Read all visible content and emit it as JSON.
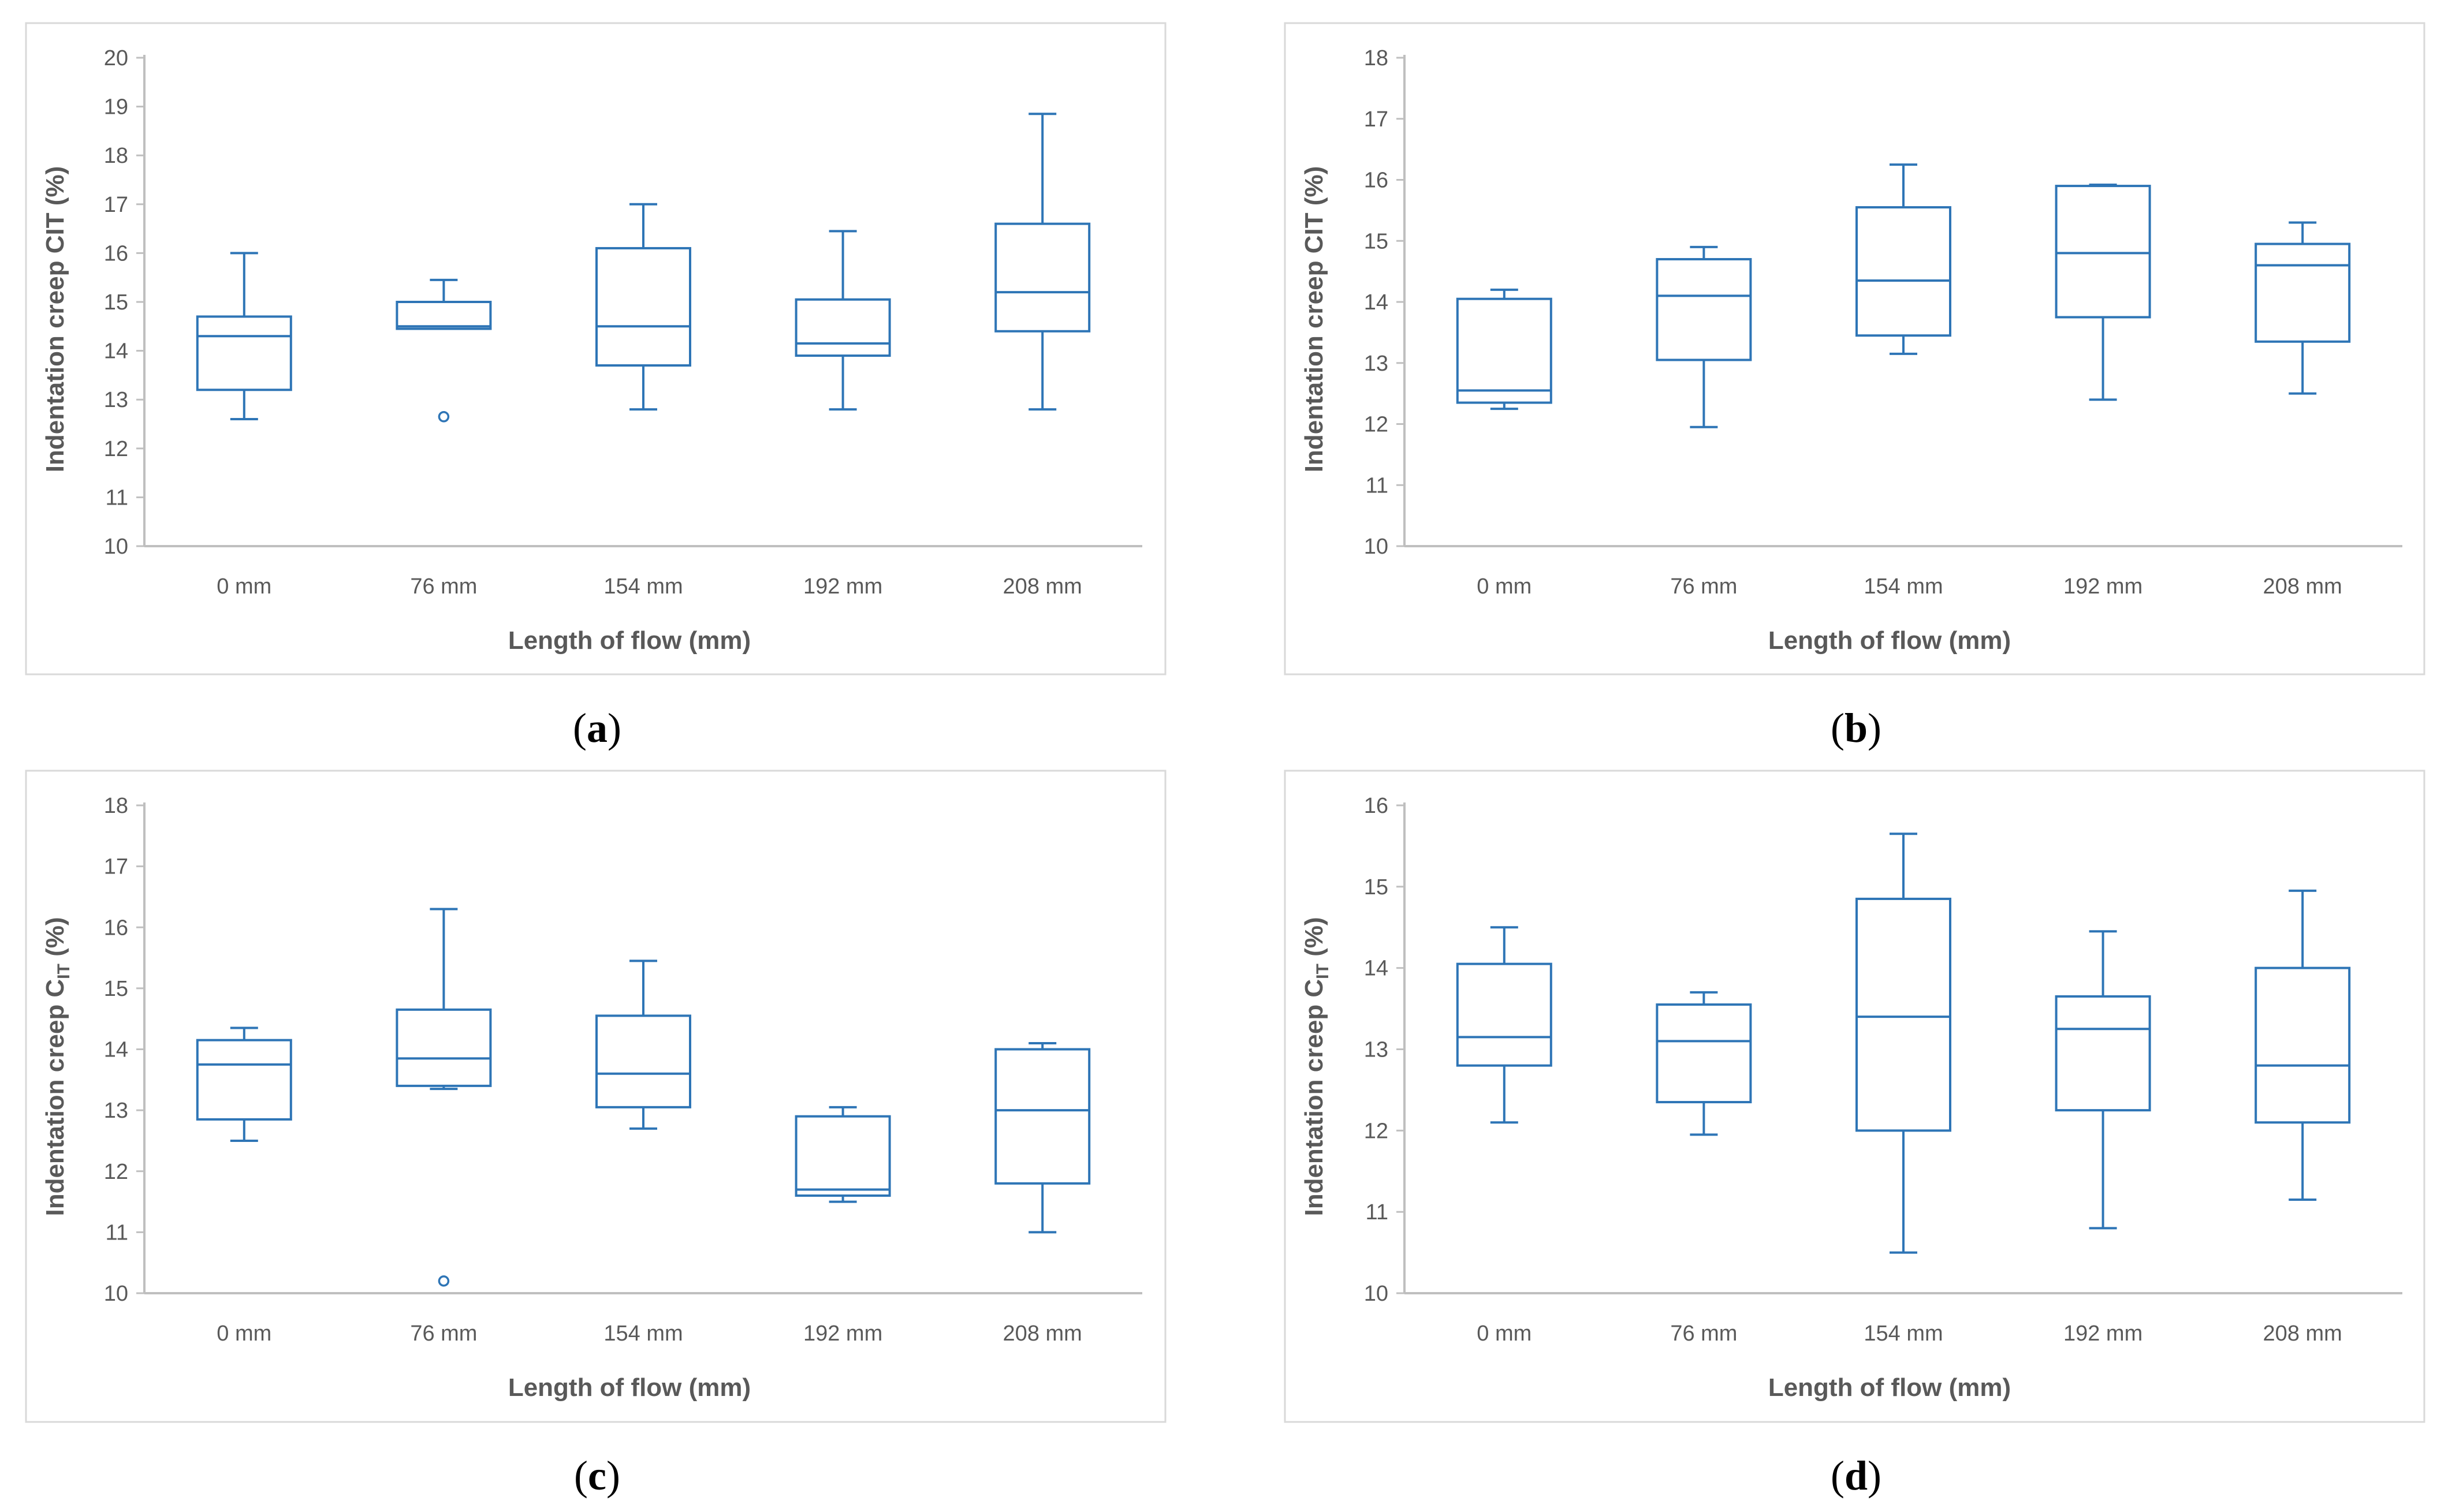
{
  "colors": {
    "box": "#2e75b6",
    "axis": "#bfbfbf",
    "frame": "#d9d9d9",
    "text": "#595959"
  },
  "chart_data": [
    {
      "type": "box",
      "panel_letter": "a",
      "caption_open": "(",
      "caption_close": ")",
      "ylabel": "Indentation creep CIT (%)",
      "ylabel_main": "Indentation creep CIT (%)",
      "ylabel_sub": "",
      "ylabel_tail": "",
      "xlabel": "Length of flow (mm)",
      "categories": [
        "0 mm",
        "76 mm",
        "154 mm",
        "192 mm",
        "208 mm"
      ],
      "ylim": [
        10,
        20
      ],
      "yticks": [
        10,
        11,
        12,
        13,
        14,
        15,
        16,
        17,
        18,
        19,
        20
      ],
      "boxes": [
        {
          "min": 12.6,
          "q1": 13.2,
          "median": 14.3,
          "q3": 14.7,
          "max": 16.0,
          "outliers": []
        },
        {
          "min": 14.45,
          "q1": 14.45,
          "median": 14.5,
          "q3": 15.0,
          "max": 15.45,
          "outliers": [
            12.65
          ]
        },
        {
          "min": 12.8,
          "q1": 13.7,
          "median": 14.5,
          "q3": 16.1,
          "max": 17.0,
          "outliers": []
        },
        {
          "min": 12.8,
          "q1": 13.9,
          "median": 14.15,
          "q3": 15.05,
          "max": 16.45,
          "outliers": []
        },
        {
          "min": 12.8,
          "q1": 14.4,
          "median": 15.2,
          "q3": 16.6,
          "max": 18.85,
          "outliers": []
        }
      ]
    },
    {
      "type": "box",
      "panel_letter": "b",
      "caption_open": "(",
      "caption_close": ")",
      "ylabel": "Indentation creep CIT (%)",
      "ylabel_main": "Indentation creep CIT (%)",
      "ylabel_sub": "",
      "ylabel_tail": "",
      "xlabel": "Length of flow (mm)",
      "categories": [
        "0 mm",
        "76 mm",
        "154 mm",
        "192 mm",
        "208 mm"
      ],
      "ylim": [
        10,
        18
      ],
      "yticks": [
        10,
        11,
        12,
        13,
        14,
        15,
        16,
        17,
        18
      ],
      "boxes": [
        {
          "min": 12.25,
          "q1": 12.35,
          "median": 12.55,
          "q3": 14.05,
          "max": 14.2,
          "outliers": []
        },
        {
          "min": 11.95,
          "q1": 13.05,
          "median": 14.1,
          "q3": 14.7,
          "max": 14.9,
          "outliers": []
        },
        {
          "min": 13.15,
          "q1": 13.45,
          "median": 14.35,
          "q3": 15.55,
          "max": 16.25,
          "outliers": []
        },
        {
          "min": 12.4,
          "q1": 13.75,
          "median": 14.8,
          "q3": 15.9,
          "max": 15.92,
          "outliers": []
        },
        {
          "min": 12.5,
          "q1": 13.35,
          "median": 14.6,
          "q3": 14.95,
          "max": 15.3,
          "outliers": []
        }
      ]
    },
    {
      "type": "box",
      "panel_letter": "c",
      "caption_open": "(",
      "caption_close": ")",
      "ylabel": "Indentation creep CIT (%)",
      "ylabel_main": "Indentation creep C",
      "ylabel_sub": "IT",
      "ylabel_tail": " (%)",
      "xlabel": "Length of flow (mm)",
      "categories": [
        "0 mm",
        "76 mm",
        "154 mm",
        "192 mm",
        "208 mm"
      ],
      "ylim": [
        10,
        18
      ],
      "yticks": [
        10,
        11,
        12,
        13,
        14,
        15,
        16,
        17,
        18
      ],
      "boxes": [
        {
          "min": 12.5,
          "q1": 12.85,
          "median": 13.75,
          "q3": 14.15,
          "max": 14.35,
          "outliers": []
        },
        {
          "min": 13.35,
          "q1": 13.4,
          "median": 13.85,
          "q3": 14.65,
          "max": 16.3,
          "outliers": [
            10.2
          ]
        },
        {
          "min": 12.7,
          "q1": 13.05,
          "median": 13.6,
          "q3": 14.55,
          "max": 15.45,
          "outliers": []
        },
        {
          "min": 11.5,
          "q1": 11.6,
          "median": 11.7,
          "q3": 12.9,
          "max": 13.05,
          "outliers": []
        },
        {
          "min": 11.0,
          "q1": 11.8,
          "median": 13.0,
          "q3": 14.0,
          "max": 14.1,
          "outliers": []
        }
      ]
    },
    {
      "type": "box",
      "panel_letter": "d",
      "caption_open": "(",
      "caption_close": ")",
      "ylabel": "Indentation creep CIT (%)",
      "ylabel_main": "Indentation creep C",
      "ylabel_sub": "IT",
      "ylabel_tail": " (%)",
      "xlabel": "Length of flow (mm)",
      "categories": [
        "0 mm",
        "76 mm",
        "154 mm",
        "192 mm",
        "208 mm"
      ],
      "ylim": [
        10,
        16
      ],
      "yticks": [
        10,
        11,
        12,
        13,
        14,
        15,
        16
      ],
      "boxes": [
        {
          "min": 12.1,
          "q1": 12.8,
          "median": 13.15,
          "q3": 14.05,
          "max": 14.5,
          "outliers": []
        },
        {
          "min": 11.95,
          "q1": 12.35,
          "median": 13.1,
          "q3": 13.55,
          "max": 13.7,
          "outliers": []
        },
        {
          "min": 10.5,
          "q1": 12.0,
          "median": 13.4,
          "q3": 14.85,
          "max": 15.65,
          "outliers": []
        },
        {
          "min": 10.8,
          "q1": 12.25,
          "median": 13.25,
          "q3": 13.65,
          "max": 14.45,
          "outliers": []
        },
        {
          "min": 11.15,
          "q1": 12.1,
          "median": 12.8,
          "q3": 14.0,
          "max": 14.95,
          "outliers": []
        }
      ]
    }
  ]
}
